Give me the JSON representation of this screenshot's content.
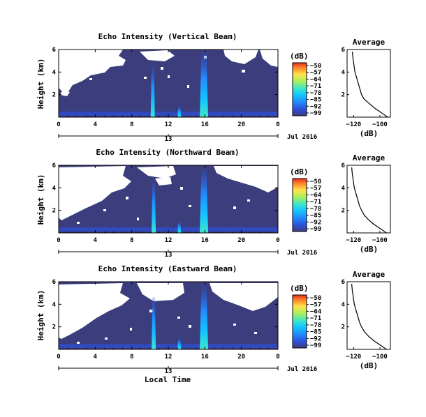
{
  "chart_data": [
    {
      "type": "heatmap",
      "title": "Echo Intensity (Vertical Beam)",
      "ylabel": "Height (km)",
      "x_ticks": [
        "0",
        "4",
        "8",
        "12",
        "16",
        "20",
        "0"
      ],
      "y_ticks": [
        "2",
        "4",
        "6"
      ],
      "date_tick": "13",
      "date_label": "Jul 2016",
      "xlim": [
        0,
        24
      ],
      "ylim": [
        0,
        6
      ],
      "colorbar": {
        "label": "(dB)",
        "ticks": [
          "-50",
          "-57",
          "-64",
          "-71",
          "-78",
          "-85",
          "-92",
          "-99"
        ]
      },
      "plumes_hour": [
        10.3,
        13.2,
        15.9
      ],
      "profile": {
        "title": "Average",
        "xlabel": "(dB)",
        "x_ticks": [
          "-120",
          "-100"
        ],
        "y_ticks": [
          "2",
          "4",
          "6"
        ],
        "xlim": [
          -125,
          -92
        ],
        "x": [
          -94,
          -99,
          -104,
          -108,
          -112,
          -114,
          -115,
          -116,
          -117,
          -118,
          -119,
          -119.5,
          -120,
          -120.5,
          -121
        ],
        "y": [
          0.0,
          0.4,
          0.8,
          1.2,
          1.6,
          2.0,
          2.4,
          2.8,
          3.2,
          3.6,
          4.0,
          4.4,
          4.8,
          5.2,
          5.8
        ]
      }
    },
    {
      "type": "heatmap",
      "title": "Echo Intensity (Northward Beam)",
      "ylabel": "Height (km)",
      "x_ticks": [
        "0",
        "4",
        "8",
        "12",
        "16",
        "20",
        "0"
      ],
      "y_ticks": [
        "2",
        "4",
        "6"
      ],
      "date_tick": "13",
      "date_label": "Jul 2016",
      "xlim": [
        0,
        24
      ],
      "ylim": [
        0,
        6
      ],
      "colorbar": {
        "label": "(dB)",
        "ticks": [
          "-50",
          "-57",
          "-64",
          "-71",
          "-78",
          "-85",
          "-92",
          "-99"
        ]
      },
      "plumes_hour": [
        10.4,
        13.2,
        15.9
      ],
      "profile": {
        "title": "Average",
        "xlabel": "(dB)",
        "x_ticks": [
          "-120",
          "-100"
        ],
        "y_ticks": [
          "2",
          "4",
          "6"
        ],
        "xlim": [
          -125,
          -92
        ],
        "x": [
          -95,
          -100,
          -105,
          -109,
          -112,
          -114,
          -115.5,
          -116.5,
          -117.5,
          -118.5,
          -119.5,
          -120,
          -120.5,
          -121,
          -121.5
        ],
        "y": [
          0.0,
          0.4,
          0.8,
          1.2,
          1.6,
          2.0,
          2.4,
          2.8,
          3.2,
          3.6,
          4.0,
          4.4,
          4.8,
          5.2,
          5.8
        ]
      }
    },
    {
      "type": "heatmap",
      "title": "Echo Intensity (Eastward Beam)",
      "ylabel": "Height (km)",
      "x_ticks": [
        "0",
        "4",
        "8",
        "12",
        "16",
        "20",
        "0"
      ],
      "y_ticks": [
        "2",
        "4",
        "6"
      ],
      "date_tick": "13",
      "date_label": "Jul 2016",
      "xlabel": "Local Time",
      "xlim": [
        0,
        24
      ],
      "ylim": [
        0,
        6
      ],
      "colorbar": {
        "label": "(dB)",
        "ticks": [
          "-50",
          "-57",
          "-64",
          "-71",
          "-78",
          "-85",
          "-92",
          "-99"
        ]
      },
      "plumes_hour": [
        10.4,
        13.2,
        15.9
      ],
      "profile": {
        "title": "Average",
        "xlabel": "(dB)",
        "x_ticks": [
          "-120",
          "-100"
        ],
        "y_ticks": [
          "2",
          "4",
          "6"
        ],
        "xlim": [
          -125,
          -92
        ],
        "x": [
          -95,
          -100,
          -105,
          -109,
          -112,
          -114,
          -115.5,
          -116.5,
          -117.5,
          -118.5,
          -119.5,
          -120,
          -120.5,
          -121,
          -121.5
        ],
        "y": [
          0.0,
          0.4,
          0.8,
          1.2,
          1.6,
          2.0,
          2.4,
          2.8,
          3.2,
          3.6,
          4.0,
          4.4,
          4.8,
          5.2,
          5.8
        ]
      }
    }
  ],
  "colors": {
    "background": "#3b3d7c",
    "colormap": [
      "#3b3d7c",
      "#2c4fd8",
      "#1f8cff",
      "#14c8ff",
      "#3fe7c6",
      "#a8f05a",
      "#ffe34a",
      "#ff8a28",
      "#e8291c"
    ]
  }
}
